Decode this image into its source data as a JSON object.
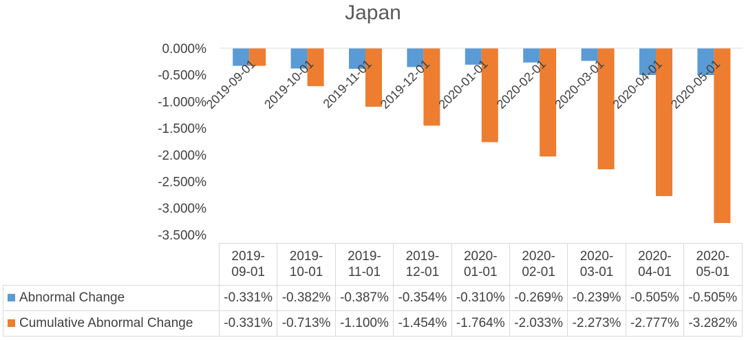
{
  "chart_data": {
    "type": "bar",
    "title": "Japan",
    "categories": [
      "2019-09-01",
      "2019-10-01",
      "2019-11-01",
      "2019-12-01",
      "2020-01-01",
      "2020-02-01",
      "2020-03-01",
      "2020-04-01",
      "2020-05-01"
    ],
    "table_categories": [
      "2019-\n09-01",
      "2019-\n10-01",
      "2019-\n11-01",
      "2019-\n12-01",
      "2020-\n01-01",
      "2020-\n02-01",
      "2020-\n03-01",
      "2020-\n04-01",
      "2020-\n05-01"
    ],
    "series": [
      {
        "name": "Abnormal Change",
        "color": "#5B9BD5",
        "values": [
          -0.331,
          -0.382,
          -0.387,
          -0.354,
          -0.31,
          -0.269,
          -0.239,
          -0.505,
          -0.505
        ],
        "labels": [
          "-0.331%",
          "-0.382%",
          "-0.387%",
          "-0.354%",
          "-0.310%",
          "-0.269%",
          "-0.239%",
          "-0.505%",
          "-0.505%"
        ]
      },
      {
        "name": "Cumulative Abnormal Change",
        "color": "#ED7D31",
        "values": [
          -0.331,
          -0.713,
          -1.1,
          -1.454,
          -1.764,
          -2.033,
          -2.273,
          -2.777,
          -3.282
        ],
        "labels": [
          "-0.331%",
          "-0.713%",
          "-1.100%",
          "-1.454%",
          "-1.764%",
          "-2.033%",
          "-2.273%",
          "-2.777%",
          "-3.282%"
        ]
      }
    ],
    "yticks": [
      "0.000%",
      "-0.500%",
      "-1.000%",
      "-1.500%",
      "-2.000%",
      "-2.500%",
      "-3.000%",
      "-3.500%"
    ],
    "ylim": [
      -3.5,
      0
    ],
    "grid": false,
    "legend": "data-table"
  }
}
